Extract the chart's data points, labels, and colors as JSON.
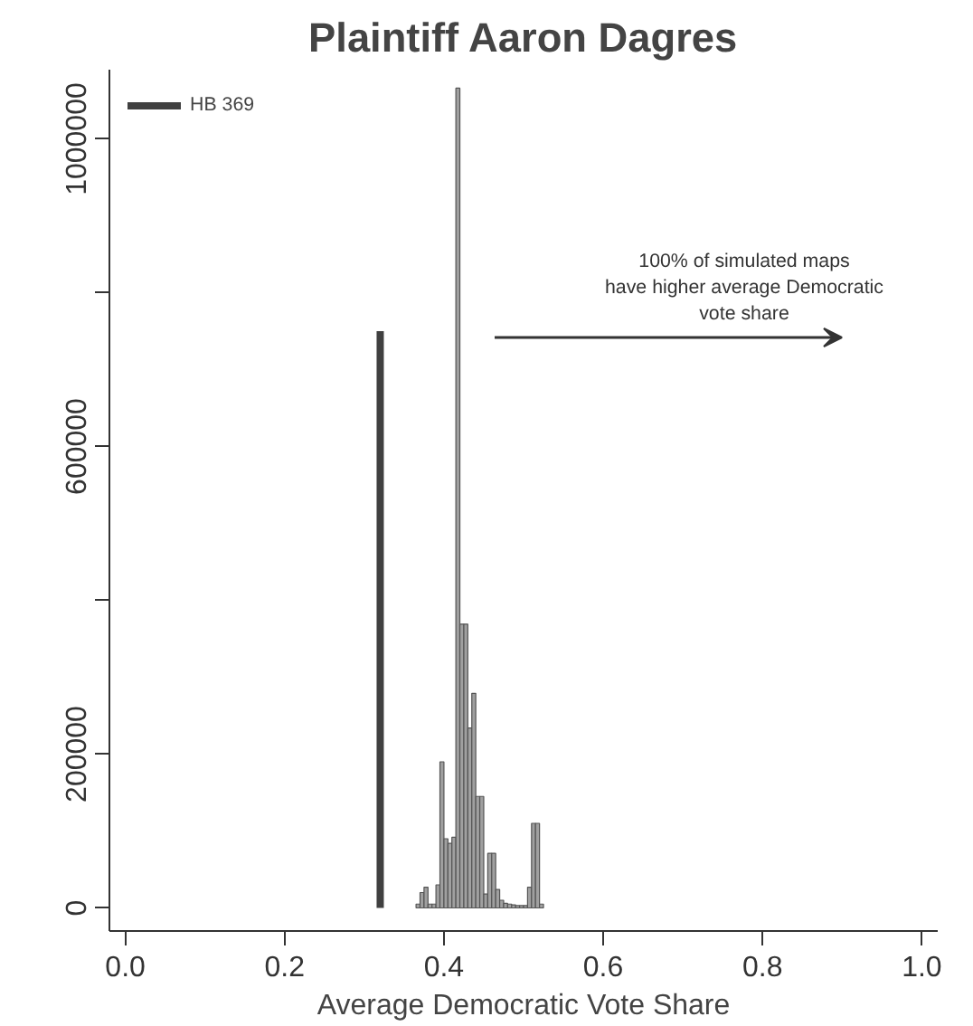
{
  "chart_data": {
    "type": "histogram",
    "title": "Plaintiff Aaron Dagres",
    "xlabel": "Average Democratic Vote Share",
    "bins": [
      0.365,
      0.37,
      0.375,
      0.38,
      0.385,
      0.39,
      0.395,
      0.4,
      0.405,
      0.41,
      0.415,
      0.42,
      0.425,
      0.43,
      0.435,
      0.44,
      0.445,
      0.45,
      0.455,
      0.46,
      0.465,
      0.47,
      0.475,
      0.48,
      0.485,
      0.49,
      0.495,
      0.5,
      0.505,
      0.51,
      0.515,
      0.52,
      0.525
    ],
    "values": [
      5000,
      20000,
      27000,
      5000,
      5000,
      30000,
      190000,
      90000,
      84000,
      92000,
      1066000,
      369000,
      369000,
      234000,
      279000,
      145000,
      145000,
      18000,
      71000,
      71000,
      24000,
      10000,
      6000,
      5000,
      4000,
      3000,
      3000,
      3000,
      27000,
      110000,
      110000,
      5000
    ],
    "color": "#a0a0a0",
    "series": [
      {
        "name": "HB 369",
        "type": "line",
        "color": "#404040",
        "x": [
          0.32,
          0.32
        ],
        "values": [
          0,
          750000
        ]
      }
    ],
    "annotations": [
      "100% of simulated maps\nhave higher average Democratic\nvote share"
    ],
    "xlim": [
      -0.02,
      1.02
    ],
    "ylim": [
      -30000,
      1090000
    ],
    "xticks": [
      {
        "value": 0,
        "label": "0.0"
      },
      {
        "value": 0.2,
        "label": "0.2"
      },
      {
        "value": 0.4,
        "label": "0.4"
      },
      {
        "value": 0.6,
        "label": "0.6"
      },
      {
        "value": 0.8,
        "label": "0.8"
      },
      {
        "value": 1,
        "label": "1.0"
      }
    ],
    "yticks": [
      0,
      200000,
      {
        "value": 400000,
        "label": null
      },
      600000,
      {
        "value": 800000,
        "label": null
      },
      1000000
    ],
    "grid": false,
    "legend": "top left"
  }
}
